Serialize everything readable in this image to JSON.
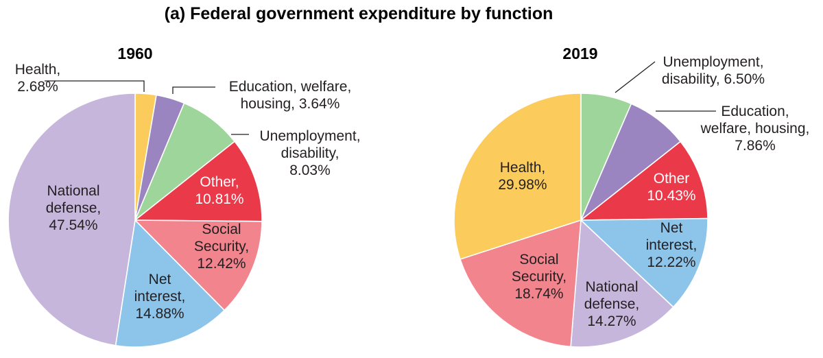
{
  "chart_data": {
    "type": "pie",
    "title": "(a) Federal government expenditure by function",
    "charts": [
      {
        "subtitle": "1960",
        "start_angle_deg": 0,
        "direction": "clockwise",
        "slices": [
          {
            "name": "Health",
            "value": 2.68,
            "label_lines": [
              "Health,",
              "2.68%"
            ],
            "color": "#fbcb5c",
            "label_color": "dark"
          },
          {
            "name": "Education, welfare, housing",
            "value": 3.64,
            "label_lines": [
              "Education, welfare,",
              "housing, 3.64%"
            ],
            "color": "#9b85c1",
            "label_color": "dark"
          },
          {
            "name": "Unemployment, disability",
            "value": 8.03,
            "label_lines": [
              "Unemployment,",
              "disability,",
              "8.03%"
            ],
            "color": "#9ed59b",
            "label_color": "dark"
          },
          {
            "name": "Other",
            "value": 10.81,
            "label_lines": [
              "Other,",
              "10.81%"
            ],
            "color": "#ea3a4a",
            "label_color": "light"
          },
          {
            "name": "Social Security",
            "value": 12.42,
            "label_lines": [
              "Social",
              "Security,",
              "12.42%"
            ],
            "color": "#f2848e",
            "label_color": "dark"
          },
          {
            "name": "Net interest",
            "value": 14.88,
            "label_lines": [
              "Net",
              "interest,",
              "14.88%"
            ],
            "color": "#8dc4ea",
            "label_color": "dark"
          },
          {
            "name": "National defense",
            "value": 47.54,
            "label_lines": [
              "National",
              "defense,",
              "47.54%"
            ],
            "color": "#c6b6dc",
            "label_color": "dark"
          }
        ]
      },
      {
        "subtitle": "2019",
        "start_angle_deg": 0,
        "direction": "clockwise",
        "slices": [
          {
            "name": "Unemployment, disability",
            "value": 6.5,
            "label_lines": [
              "Unemployment,",
              "disability, 6.50%"
            ],
            "color": "#9ed59b",
            "label_color": "dark"
          },
          {
            "name": "Education, welfare, housing",
            "value": 7.86,
            "label_lines": [
              "Education,",
              "welfare, housing,",
              "7.86%"
            ],
            "color": "#9b85c1",
            "label_color": "dark"
          },
          {
            "name": "Other",
            "value": 10.43,
            "label_lines": [
              "Other",
              "10.43%"
            ],
            "color": "#ea3a4a",
            "label_color": "light"
          },
          {
            "name": "Net interest",
            "value": 12.22,
            "label_lines": [
              "Net",
              "interest,",
              "12.22%"
            ],
            "color": "#8dc4ea",
            "label_color": "dark"
          },
          {
            "name": "National defense",
            "value": 14.27,
            "label_lines": [
              "National",
              "defense,",
              "14.27%"
            ],
            "color": "#c6b6dc",
            "label_color": "dark"
          },
          {
            "name": "Social Security",
            "value": 18.74,
            "label_lines": [
              "Social",
              "Security,",
              "18.74%"
            ],
            "color": "#f2848e",
            "label_color": "dark"
          },
          {
            "name": "Health",
            "value": 29.98,
            "label_lines": [
              "Health,",
              "29.98%"
            ],
            "color": "#fbcb5c",
            "label_color": "dark"
          }
        ]
      }
    ]
  }
}
